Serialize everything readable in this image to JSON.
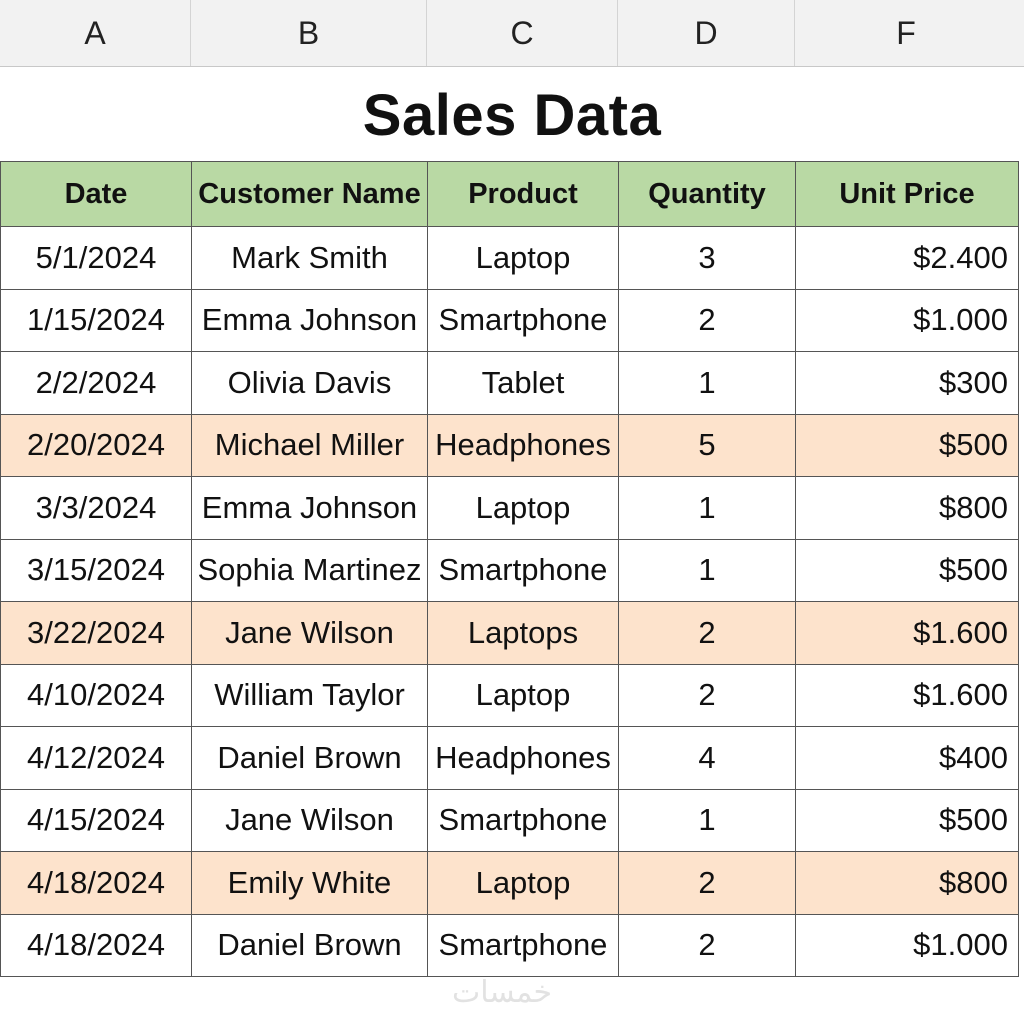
{
  "columns": [
    "A",
    "B",
    "C",
    "D",
    "F"
  ],
  "title": "Sales Data",
  "table": {
    "headers": [
      "Date",
      "Customer Name",
      "Product",
      "Quantity",
      "Unit Price"
    ],
    "rows": [
      {
        "date": "5/1/2024",
        "customer": "Mark Smith",
        "product": "Laptop",
        "quantity": "3",
        "unit_price": "$2.400",
        "highlight": false
      },
      {
        "date": "1/15/2024",
        "customer": "Emma Johnson",
        "product": "Smartphone",
        "quantity": "2",
        "unit_price": "$1.000",
        "highlight": false
      },
      {
        "date": "2/2/2024",
        "customer": "Olivia Davis",
        "product": "Tablet",
        "quantity": "1",
        "unit_price": "$300",
        "highlight": false
      },
      {
        "date": "2/20/2024",
        "customer": "Michael Miller",
        "product": "Headphones",
        "quantity": "5",
        "unit_price": "$500",
        "highlight": true
      },
      {
        "date": "3/3/2024",
        "customer": "Emma Johnson",
        "product": "Laptop",
        "quantity": "1",
        "unit_price": "$800",
        "highlight": false
      },
      {
        "date": "3/15/2024",
        "customer": "Sophia Martinez",
        "product": "Smartphone",
        "quantity": "1",
        "unit_price": "$500",
        "highlight": false
      },
      {
        "date": "3/22/2024",
        "customer": "Jane Wilson",
        "product": "Laptops",
        "quantity": "2",
        "unit_price": "$1.600",
        "highlight": true
      },
      {
        "date": "4/10/2024",
        "customer": "William Taylor",
        "product": "Laptop",
        "quantity": "2",
        "unit_price": "$1.600",
        "highlight": false
      },
      {
        "date": "4/12/2024",
        "customer": "Daniel Brown",
        "product": "Headphones",
        "quantity": "4",
        "unit_price": "$400",
        "highlight": false
      },
      {
        "date": "4/15/2024",
        "customer": "Jane Wilson",
        "product": "Smartphone",
        "quantity": "1",
        "unit_price": "$500",
        "highlight": false
      },
      {
        "date": "4/18/2024",
        "customer": "Emily White",
        "product": "Laptop",
        "quantity": "2",
        "unit_price": "$800",
        "highlight": true
      },
      {
        "date": "4/18/2024",
        "customer": "Daniel Brown",
        "product": "Smartphone",
        "quantity": "2",
        "unit_price": "$1.000",
        "highlight": false
      }
    ]
  },
  "colors": {
    "header_fill": "#b9d9a4",
    "highlight_fill": "#fde3cc",
    "column_bar": "#f2f2f2"
  },
  "watermark": "خمسات"
}
